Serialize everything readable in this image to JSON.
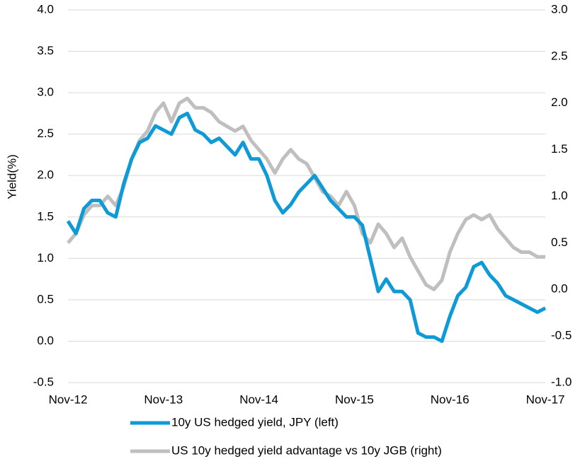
{
  "chart_data": {
    "type": "line",
    "y_label": "Yield(%)",
    "categories": [
      "Nov-12",
      null,
      null,
      null,
      null,
      null,
      null,
      null,
      null,
      null,
      null,
      null,
      "Nov-13",
      null,
      null,
      null,
      null,
      null,
      null,
      null,
      null,
      null,
      null,
      null,
      "Nov-14",
      null,
      null,
      null,
      null,
      null,
      null,
      null,
      null,
      null,
      null,
      null,
      "Nov-15",
      null,
      null,
      null,
      null,
      null,
      null,
      null,
      null,
      null,
      null,
      null,
      "Nov-16",
      null,
      null,
      null,
      null,
      null,
      null,
      null,
      null,
      null,
      null,
      null,
      "Nov-17"
    ],
    "series": [
      {
        "name": "10y US hedged yield, JPY (left)",
        "color": "#0e9ad6",
        "values": [
          1.45,
          1.3,
          1.6,
          1.7,
          1.7,
          1.55,
          1.5,
          1.9,
          2.2,
          2.4,
          2.45,
          2.6,
          2.55,
          2.5,
          2.7,
          2.75,
          2.55,
          2.5,
          2.4,
          2.45,
          2.35,
          2.25,
          2.4,
          2.2,
          2.2,
          2.0,
          1.7,
          1.55,
          1.65,
          1.8,
          1.9,
          2.0,
          1.85,
          1.7,
          1.6,
          1.5,
          1.5,
          1.4,
          1.0,
          0.6,
          0.75,
          0.6,
          0.6,
          0.5,
          0.1,
          0.05,
          0.05,
          0.0,
          0.3,
          0.55,
          0.65,
          0.9,
          0.95,
          0.8,
          0.7,
          0.55,
          0.5,
          0.45,
          0.4,
          0.35,
          0.4
        ]
      },
      {
        "name": "US 10y hedged yield advantage vs 10y JGB (right)",
        "color": "#bfbfbf",
        "axis": "y2",
        "values": [
          0.5,
          0.6,
          0.8,
          0.9,
          0.9,
          1.0,
          0.9,
          1.1,
          1.4,
          1.6,
          1.7,
          1.9,
          2.0,
          1.8,
          2.0,
          2.05,
          1.95,
          1.95,
          1.9,
          1.8,
          1.75,
          1.7,
          1.75,
          1.6,
          1.5,
          1.4,
          1.25,
          1.4,
          1.5,
          1.4,
          1.35,
          1.2,
          1.05,
          1.0,
          0.9,
          1.05,
          0.9,
          0.6,
          0.5,
          0.7,
          0.6,
          0.45,
          0.55,
          0.35,
          0.2,
          0.05,
          0.0,
          0.1,
          0.4,
          0.6,
          0.75,
          0.8,
          0.75,
          0.8,
          0.65,
          0.55,
          0.45,
          0.4,
          0.4,
          0.35,
          0.35
        ]
      }
    ],
    "ylim": [
      -0.5,
      4.0
    ],
    "yticks": [
      -0.5,
      {
        "value": 0,
        "label": "0.0"
      },
      0.5,
      {
        "value": 1,
        "label": "1.0"
      },
      1.5,
      {
        "value": 2,
        "label": "2.0"
      },
      2.5,
      {
        "value": 3,
        "label": "3.0"
      },
      3.5,
      {
        "value": 4,
        "label": "4.0"
      }
    ],
    "y2lim": [
      -1.0,
      3.0
    ],
    "y2ticks": [
      {
        "value": -1,
        "label": "-1.0"
      },
      -0.5,
      {
        "value": 0,
        "label": "0.0"
      },
      0.5,
      {
        "value": 1,
        "label": "1.0"
      },
      1.5,
      {
        "value": 2,
        "label": "2.0"
      },
      2.5,
      {
        "value": 3,
        "label": "3.0"
      }
    ],
    "grid": true,
    "legend": "bottom"
  }
}
